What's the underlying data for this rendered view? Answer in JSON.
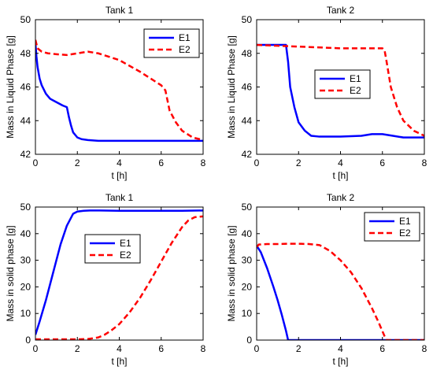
{
  "chart_data": [
    {
      "type": "line",
      "title": "Tank 1",
      "xlabel": "t [h]",
      "ylabel": "Mass in Liquid Phase [g]",
      "xlim": [
        0,
        8
      ],
      "ylim": [
        42,
        50
      ],
      "xticks": [
        0,
        2,
        4,
        6,
        8
      ],
      "yticks": [
        42,
        44,
        46,
        48,
        50
      ],
      "legend_position": "top-right",
      "series": [
        {
          "name": "E1",
          "color": "#0000ff",
          "dash": "solid",
          "x": [
            0,
            0.05,
            0.1,
            0.2,
            0.3,
            0.5,
            0.7,
            1.0,
            1.3,
            1.5,
            1.6,
            1.7,
            1.8,
            2.0,
            2.2,
            2.5,
            3.0,
            4.0,
            5.0,
            6.0,
            7.0,
            8.0
          ],
          "y": [
            48.6,
            47.8,
            47.2,
            46.5,
            46.1,
            45.6,
            45.3,
            45.1,
            44.9,
            44.8,
            44.2,
            43.7,
            43.3,
            43.0,
            42.9,
            42.85,
            42.8,
            42.8,
            42.8,
            42.8,
            42.8,
            42.8
          ]
        },
        {
          "name": "E2",
          "color": "#ff0000",
          "dash": "dashed",
          "x": [
            0,
            0.1,
            0.3,
            0.6,
            1.0,
            1.5,
            2.0,
            2.5,
            3.0,
            4.0,
            5.0,
            6.0,
            6.2,
            6.4,
            6.7,
            7.0,
            7.5,
            8.0
          ],
          "y": [
            48.8,
            48.3,
            48.1,
            48.0,
            47.95,
            47.9,
            48.0,
            48.1,
            48.0,
            47.6,
            46.9,
            46.1,
            45.8,
            44.6,
            43.9,
            43.4,
            43.0,
            42.85
          ]
        }
      ]
    },
    {
      "type": "line",
      "title": "Tank 2",
      "xlabel": "t [h]",
      "ylabel": "Mass in Liquid Phase [g]",
      "xlim": [
        0,
        8
      ],
      "ylim": [
        42,
        50
      ],
      "xticks": [
        0,
        2,
        4,
        6,
        8
      ],
      "yticks": [
        42,
        44,
        46,
        48,
        50
      ],
      "legend_position": "center",
      "series": [
        {
          "name": "E1",
          "color": "#0000ff",
          "dash": "solid",
          "x": [
            0,
            0.5,
            1.0,
            1.4,
            1.5,
            1.6,
            1.8,
            2.0,
            2.3,
            2.6,
            3.0,
            4.0,
            5.0,
            5.5,
            6.0,
            6.5,
            7.0,
            7.5,
            8.0
          ],
          "y": [
            48.5,
            48.5,
            48.5,
            48.5,
            47.5,
            46.0,
            44.8,
            43.9,
            43.4,
            43.1,
            43.05,
            43.05,
            43.1,
            43.2,
            43.2,
            43.1,
            43.0,
            43.0,
            43.0
          ]
        },
        {
          "name": "E2",
          "color": "#ff0000",
          "dash": "dashed",
          "x": [
            0,
            1.0,
            2.0,
            3.0,
            4.0,
            5.0,
            6.0,
            6.1,
            6.2,
            6.4,
            6.7,
            7.0,
            7.5,
            8.0
          ],
          "y": [
            48.5,
            48.45,
            48.4,
            48.35,
            48.3,
            48.3,
            48.3,
            48.2,
            47.5,
            46.0,
            44.8,
            44.0,
            43.4,
            43.1
          ]
        }
      ]
    },
    {
      "type": "line",
      "title": "Tank 1",
      "xlabel": "t [h]",
      "ylabel": "Mass in solid phase [g]",
      "xlim": [
        0,
        8
      ],
      "ylim": [
        0,
        50
      ],
      "xticks": [
        0,
        2,
        4,
        6,
        8
      ],
      "yticks": [
        0,
        10,
        20,
        30,
        40,
        50
      ],
      "legend_position": "center",
      "series": [
        {
          "name": "E1",
          "color": "#0000ff",
          "dash": "solid",
          "x": [
            0,
            0.2,
            0.5,
            0.8,
            1.0,
            1.2,
            1.5,
            1.8,
            2.0,
            2.3,
            2.6,
            3.0,
            4.0,
            5.0,
            6.0,
            7.0,
            8.0
          ],
          "y": [
            2,
            7,
            15,
            24,
            30,
            36,
            43,
            47.5,
            48.3,
            48.6,
            48.7,
            48.7,
            48.6,
            48.6,
            48.6,
            48.6,
            48.7
          ]
        },
        {
          "name": "E2",
          "color": "#ff0000",
          "dash": "dashed",
          "x": [
            0,
            1.0,
            2.0,
            2.5,
            3.0,
            3.3,
            3.6,
            4.0,
            4.5,
            5.0,
            5.5,
            6.0,
            6.5,
            7.0,
            7.3,
            7.6,
            8.0
          ],
          "y": [
            0.3,
            0.3,
            0.3,
            0.4,
            1.0,
            2.0,
            3.5,
            6.0,
            10.5,
            16.0,
            22.5,
            29.5,
            36.5,
            42.5,
            45.0,
            46.2,
            46.5
          ]
        }
      ]
    },
    {
      "type": "line",
      "title": "Tank 2",
      "xlabel": "t [h]",
      "ylabel": "Mass in solid phase [g]",
      "xlim": [
        0,
        8
      ],
      "ylim": [
        0,
        50
      ],
      "xticks": [
        0,
        2,
        4,
        6,
        8
      ],
      "yticks": [
        0,
        10,
        20,
        30,
        40,
        50
      ],
      "legend_position": "top-right",
      "series": [
        {
          "name": "E1",
          "color": "#0000ff",
          "dash": "solid",
          "x": [
            0,
            0.2,
            0.5,
            0.8,
            1.0,
            1.2,
            1.4,
            1.5,
            2.0,
            3.0,
            4.0,
            5.0,
            6.0,
            7.0,
            8.0
          ],
          "y": [
            35.5,
            33.0,
            27.0,
            20.0,
            15.0,
            9.5,
            3.5,
            0,
            0,
            0,
            0,
            0,
            0,
            0,
            0
          ]
        },
        {
          "name": "E2",
          "color": "#ff0000",
          "dash": "dashed",
          "x": [
            0,
            0.1,
            0.5,
            1.0,
            1.5,
            2.0,
            2.5,
            3.0,
            3.5,
            4.0,
            4.5,
            5.0,
            5.5,
            5.8,
            6.1,
            6.2,
            7.0,
            8.0
          ],
          "y": [
            35.0,
            35.9,
            36.1,
            36.1,
            36.2,
            36.2,
            36.1,
            35.7,
            33.5,
            30.0,
            25.5,
            19.5,
            12.0,
            7.0,
            1.5,
            0,
            0,
            0
          ]
        }
      ]
    }
  ]
}
